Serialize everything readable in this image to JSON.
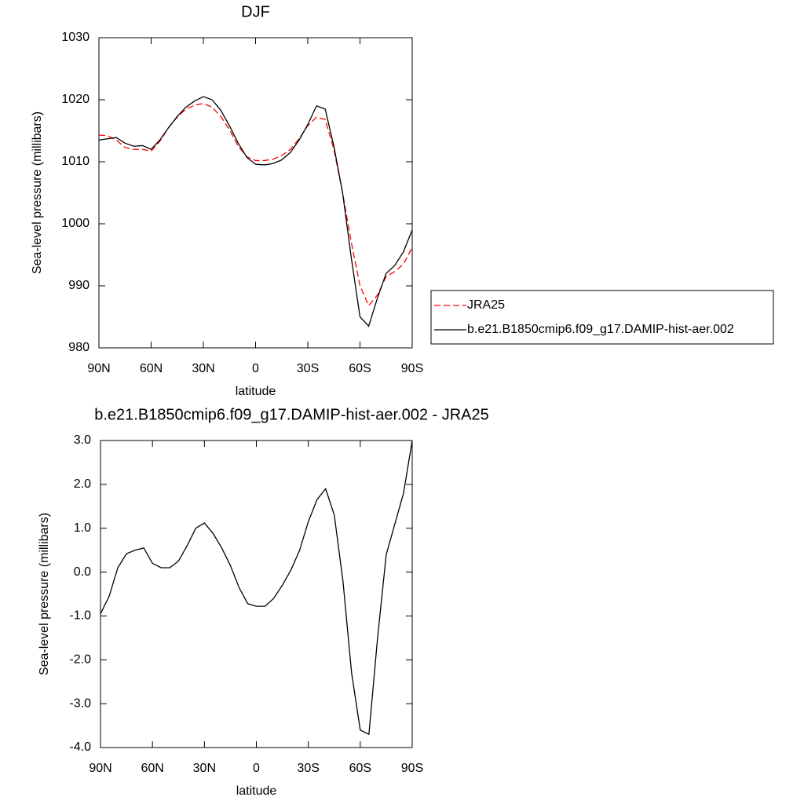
{
  "chart_data": [
    {
      "type": "line",
      "title": "DJF",
      "x_label": "latitude",
      "y_label": "Sea-level pressure (millibars)",
      "x": [
        90,
        85,
        80,
        75,
        70,
        65,
        60,
        55,
        50,
        45,
        40,
        35,
        30,
        25,
        20,
        15,
        10,
        5,
        0,
        -5,
        -10,
        -15,
        -20,
        -25,
        -30,
        -35,
        -40,
        -45,
        -50,
        -55,
        -60,
        -65,
        -70,
        -75,
        -80,
        -85,
        -90
      ],
      "series": [
        {
          "name": "JRA25",
          "color": "#ff0000",
          "style": "dashed",
          "values": [
            1014.3,
            1014.2,
            1013.5,
            1012.3,
            1012.0,
            1012.0,
            1011.7,
            1013.3,
            1015.5,
            1017.2,
            1018.5,
            1019.1,
            1019.4,
            1018.8,
            1017.3,
            1015.2,
            1012.5,
            1010.8,
            1010.2,
            1010.2,
            1010.4,
            1011.0,
            1012.0,
            1013.7,
            1015.8,
            1017.2,
            1016.8,
            1012.0,
            1005.0,
            997.0,
            990.0,
            986.8,
            988.5,
            991.5,
            992.3,
            993.5,
            996.2
          ]
        },
        {
          "name": "b.e21.B1850cmip6.f09_g17.DAMIP-hist-aer.002",
          "color": "#000000",
          "style": "solid",
          "values": [
            1013.5,
            1013.7,
            1013.9,
            1013.0,
            1012.5,
            1012.6,
            1012.0,
            1013.5,
            1015.5,
            1017.3,
            1018.8,
            1019.8,
            1020.5,
            1020.0,
            1018.3,
            1015.8,
            1013.0,
            1010.7,
            1009.6,
            1009.5,
            1009.7,
            1010.3,
            1011.5,
            1013.5,
            1016.0,
            1019.0,
            1018.5,
            1012.5,
            1005.0,
            994.5,
            985.0,
            983.5,
            988.0,
            992.0,
            993.3,
            995.5,
            999.0
          ]
        }
      ],
      "xlim": [
        90,
        -90
      ],
      "xticks": [
        {
          "value": 90,
          "label": "90N"
        },
        {
          "value": 60,
          "label": "60N"
        },
        {
          "value": 30,
          "label": "30N"
        },
        0,
        {
          "value": -30,
          "label": "30S"
        },
        {
          "value": -60,
          "label": "60S"
        },
        {
          "value": -90,
          "label": "90S"
        }
      ],
      "ylim": [
        980,
        1030
      ],
      "yticks": [
        980,
        990,
        1000,
        1010,
        1020,
        1030
      ],
      "legend": "right"
    },
    {
      "type": "line",
      "title": "b.e21.B1850cmip6.f09_g17.DAMIP-hist-aer.002 - JRA25",
      "x_label": "latitude",
      "y_label": "Sea-level pressure (millibars)",
      "x": [
        90,
        85,
        80,
        75,
        70,
        65,
        60,
        55,
        50,
        45,
        40,
        35,
        30,
        25,
        20,
        15,
        10,
        5,
        0,
        -5,
        -10,
        -15,
        -20,
        -25,
        -30,
        -35,
        -40,
        -45,
        -50,
        -55,
        -60,
        -65,
        -70,
        -75,
        -80,
        -85,
        -90
      ],
      "series": [
        {
          "color": "#000000",
          "style": "solid",
          "values": [
            -0.95,
            -0.55,
            0.1,
            0.42,
            0.5,
            0.55,
            0.2,
            0.1,
            0.1,
            0.25,
            0.6,
            1.0,
            1.12,
            0.88,
            0.55,
            0.15,
            -0.35,
            -0.72,
            -0.78,
            -0.78,
            -0.6,
            -0.3,
            0.05,
            0.5,
            1.15,
            1.65,
            1.9,
            1.3,
            -0.2,
            -2.3,
            -3.6,
            -3.7,
            -1.5,
            0.4,
            1.1,
            1.8,
            3.0
          ]
        }
      ],
      "xlim": [
        90,
        -90
      ],
      "xticks": [
        {
          "value": 90,
          "label": "90N"
        },
        {
          "value": 60,
          "label": "60N"
        },
        {
          "value": 30,
          "label": "30N"
        },
        0,
        {
          "value": -30,
          "label": "30S"
        },
        {
          "value": -60,
          "label": "60S"
        },
        {
          "value": -90,
          "label": "90S"
        }
      ],
      "ylim": [
        -4,
        3
      ],
      "yticks": [
        {
          "value": -4,
          "label": "-4.0"
        },
        {
          "value": -3,
          "label": "-3.0"
        },
        {
          "value": -2,
          "label": "-2.0"
        },
        {
          "value": -1,
          "label": "-1.0"
        },
        {
          "value": 0,
          "label": "0.0"
        },
        {
          "value": 1,
          "label": "1.0"
        },
        {
          "value": 2,
          "label": "2.0"
        },
        {
          "value": 3,
          "label": "3.0"
        }
      ]
    }
  ]
}
